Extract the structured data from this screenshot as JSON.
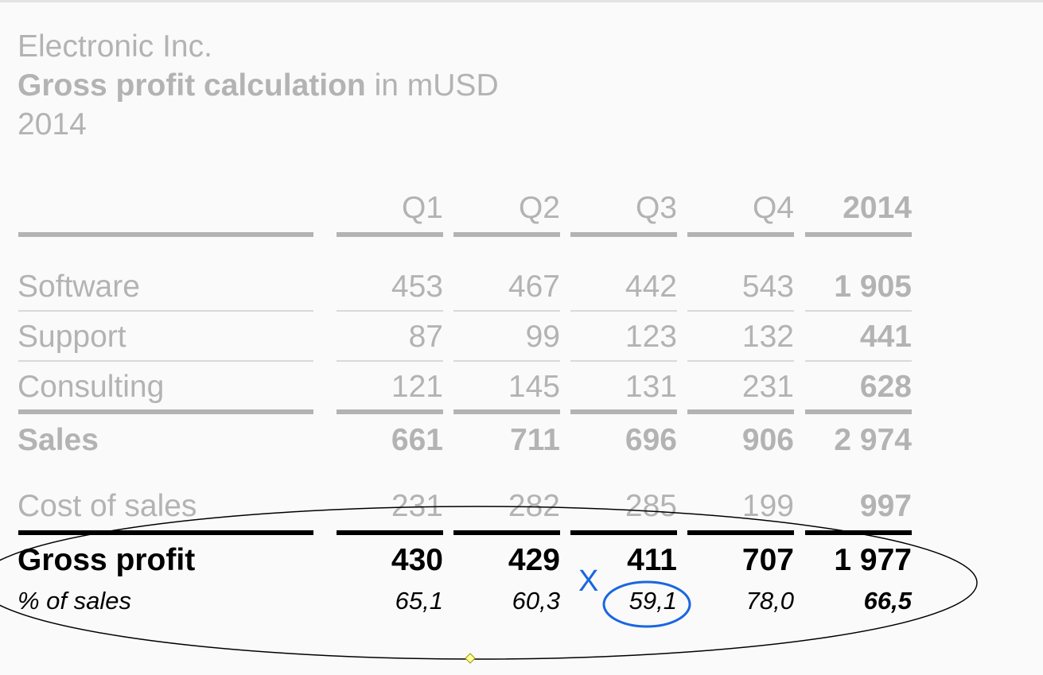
{
  "company": "Electronic Inc.",
  "title": {
    "bold": "Gross profit calculation",
    "unit": " in mUSD"
  },
  "year": "2014",
  "columns": [
    "Q1",
    "Q2",
    "Q3",
    "Q4",
    "2014"
  ],
  "rows": {
    "software": {
      "label": "Software",
      "values": [
        "453",
        "467",
        "442",
        "543",
        "1 905"
      ]
    },
    "support": {
      "label": "Support",
      "values": [
        "87",
        "99",
        "123",
        "132",
        "441"
      ]
    },
    "consulting": {
      "label": "Consulting",
      "values": [
        "121",
        "145",
        "131",
        "231",
        "628"
      ]
    },
    "sales": {
      "label": "Sales",
      "values": [
        "661",
        "711",
        "696",
        "906",
        "2 974"
      ]
    },
    "cost": {
      "label": "Cost of sales",
      "values": [
        "231",
        "282",
        "285",
        "199",
        "997"
      ]
    },
    "gross": {
      "label": "Gross profit",
      "values": [
        "430",
        "429",
        "411",
        "707",
        "1 977"
      ]
    },
    "pct": {
      "label": "% of sales",
      "values": [
        "65,1",
        "60,3",
        "59,1",
        "78,0",
        "66,5"
      ]
    }
  },
  "annotation": {
    "mark": "X",
    "accent_color": "#1a66e0"
  }
}
